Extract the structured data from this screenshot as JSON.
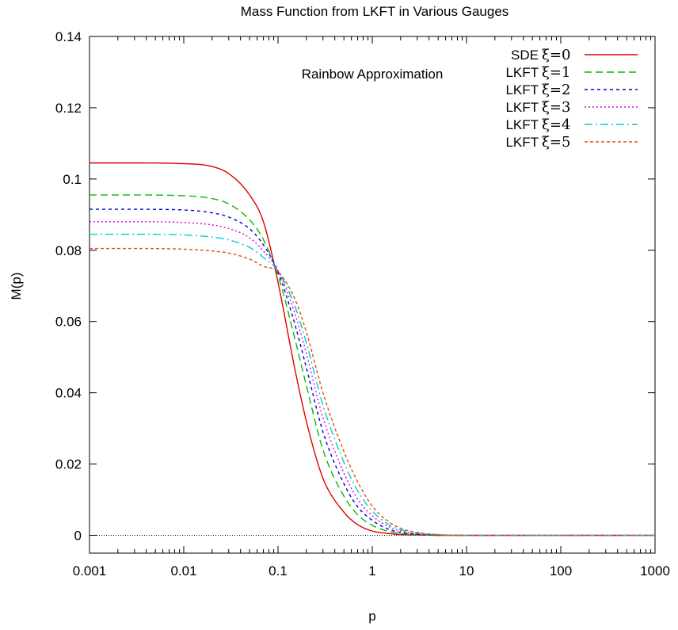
{
  "chart_data": {
    "type": "line",
    "title": "Mass Function from LKFT in Various Gauges",
    "xlabel": "p",
    "ylabel": "M(p)",
    "annotation": "Rainbow Approximation",
    "x_scale": "log",
    "xlim": [
      0.001,
      1000
    ],
    "ylim": [
      -0.005,
      0.14
    ],
    "x_ticks": [
      "0.001",
      "0.01",
      "0.1",
      "1",
      "10",
      "100",
      "1000"
    ],
    "y_ticks": [
      "0",
      "0.02",
      "0.04",
      "0.06",
      "0.08",
      "0.1",
      "0.12",
      "0.14"
    ],
    "zero_line": true,
    "legend_position": "top-right",
    "series": [
      {
        "name": "SDE",
        "xi": "ξ=0",
        "color": "#dd0000",
        "dash": "",
        "plateau": 0.1045,
        "x": [
          0.001,
          0.003,
          0.01,
          0.02,
          0.03,
          0.05,
          0.07,
          0.1,
          0.15,
          0.2,
          0.3,
          0.5,
          0.7,
          1,
          1.5,
          2,
          3,
          5,
          10,
          1000
        ],
        "y": [
          0.1045,
          0.1045,
          0.1043,
          0.1035,
          0.1015,
          0.0955,
          0.088,
          0.071,
          0.047,
          0.032,
          0.016,
          0.0065,
          0.003,
          0.0012,
          0.0005,
          0.0002,
          0.0001,
          0,
          0,
          0
        ]
      },
      {
        "name": "LKFT",
        "xi": "ξ=1",
        "color": "#00bb00",
        "dash": "9,5",
        "plateau": 0.0955,
        "x": [
          0.001,
          0.003,
          0.01,
          0.02,
          0.03,
          0.05,
          0.07,
          0.1,
          0.15,
          0.2,
          0.3,
          0.5,
          0.7,
          1,
          1.5,
          2,
          3,
          5,
          10,
          1000
        ],
        "y": [
          0.0955,
          0.0955,
          0.0953,
          0.0945,
          0.093,
          0.0885,
          0.083,
          0.073,
          0.0555,
          0.042,
          0.024,
          0.011,
          0.0058,
          0.0028,
          0.0011,
          0.0005,
          0.0002,
          0,
          0,
          0
        ]
      },
      {
        "name": "LKFT",
        "xi": "ξ=2",
        "color": "#0000cc",
        "dash": "4,4",
        "plateau": 0.0915,
        "x": [
          0.001,
          0.003,
          0.01,
          0.02,
          0.03,
          0.05,
          0.07,
          0.1,
          0.15,
          0.2,
          0.3,
          0.5,
          0.7,
          1,
          1.5,
          2,
          3,
          5,
          10,
          1000
        ],
        "y": [
          0.0915,
          0.0915,
          0.0913,
          0.0905,
          0.0893,
          0.086,
          0.0815,
          0.074,
          0.0595,
          0.047,
          0.029,
          0.0145,
          0.008,
          0.0042,
          0.0017,
          0.0008,
          0.0003,
          0.0001,
          0,
          0
        ]
      },
      {
        "name": "LKFT",
        "xi": "ξ=3",
        "color": "#dd00dd",
        "dash": "2,3",
        "plateau": 0.088,
        "x": [
          0.001,
          0.003,
          0.01,
          0.02,
          0.03,
          0.05,
          0.07,
          0.1,
          0.15,
          0.2,
          0.3,
          0.5,
          0.7,
          1,
          1.5,
          2,
          3,
          5,
          10,
          1000
        ],
        "y": [
          0.088,
          0.088,
          0.0878,
          0.0871,
          0.0861,
          0.0835,
          0.0798,
          0.0743,
          0.0625,
          0.051,
          0.033,
          0.0175,
          0.0102,
          0.0055,
          0.0024,
          0.0012,
          0.0004,
          0.0001,
          0,
          0
        ]
      },
      {
        "name": "LKFT",
        "xi": "ξ=4",
        "color": "#00cccc",
        "dash": "10,4,2,4",
        "plateau": 0.0845,
        "x": [
          0.001,
          0.003,
          0.01,
          0.02,
          0.03,
          0.05,
          0.07,
          0.1,
          0.15,
          0.2,
          0.3,
          0.5,
          0.7,
          1,
          1.5,
          2,
          3,
          5,
          10,
          1000
        ],
        "y": [
          0.0845,
          0.0845,
          0.0843,
          0.0837,
          0.0829,
          0.0808,
          0.078,
          0.0742,
          0.0645,
          0.054,
          0.0365,
          0.0205,
          0.0125,
          0.0068,
          0.003,
          0.0016,
          0.0006,
          0.0002,
          0,
          0
        ]
      },
      {
        "name": "LKFT",
        "xi": "ξ=5",
        "color": "#e05010",
        "dash": "4,3",
        "plateau": 0.0805,
        "x": [
          0.001,
          0.003,
          0.01,
          0.02,
          0.03,
          0.05,
          0.07,
          0.1,
          0.15,
          0.2,
          0.3,
          0.5,
          0.7,
          1,
          1.5,
          2,
          3,
          5,
          10,
          1000
        ],
        "y": [
          0.0805,
          0.0805,
          0.0803,
          0.0798,
          0.0792,
          0.0775,
          0.0755,
          0.074,
          0.0665,
          0.057,
          0.04,
          0.0235,
          0.015,
          0.0082,
          0.0038,
          0.002,
          0.0008,
          0.0002,
          0,
          0
        ]
      }
    ]
  }
}
